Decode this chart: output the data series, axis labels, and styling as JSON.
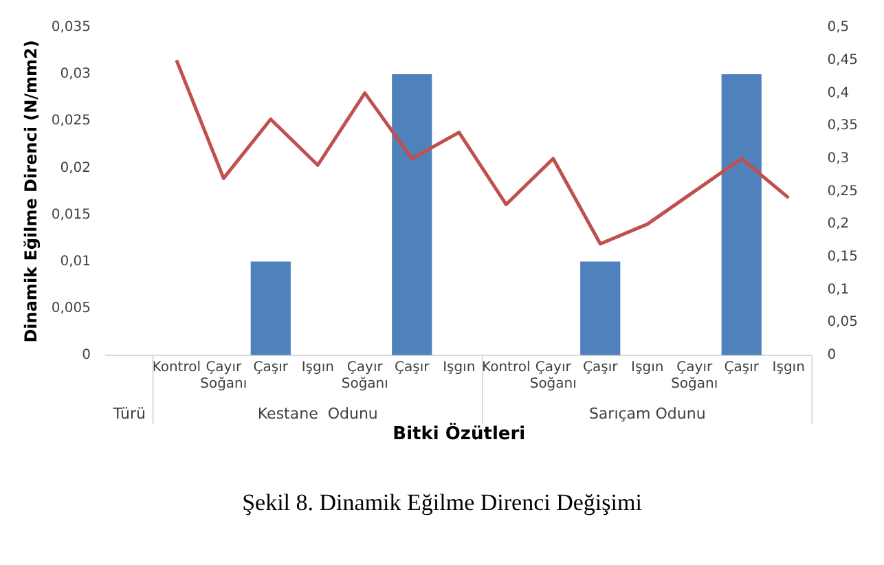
{
  "chart_data": {
    "type": "bar",
    "title": "Şekil 8. Dinamik Eğilme Direnci Değişimi",
    "xlabel": "Bitki Özütleri",
    "ylabel": "Dinamik Eğilme Direnci (N/mm2)",
    "categories": [
      null,
      "Kontrol",
      "Çayır Soğanı",
      "Çaşır",
      "Işgın",
      "Çayır Soğanı",
      "Çaşır",
      "Işgın",
      "Kontrol",
      "Çayır Soğanı",
      "Çaşır",
      "Işgın",
      "Çayır Soğanı",
      "Çaşır",
      "Işgın"
    ],
    "annotations": [
      "Türü",
      "Kestane  Odunu",
      "Sarıçam Odunu"
    ],
    "series": [
      {
        "color": "#4f81bd",
        "values": [
          null,
          null,
          null,
          0.01,
          null,
          null,
          0.03,
          null,
          null,
          null,
          0.01,
          null,
          null,
          0.03,
          null
        ]
      },
      {
        "type": "line",
        "axis": "y2",
        "color": "#c0504d",
        "values": [
          null,
          0.45,
          0.27,
          0.36,
          0.29,
          0.4,
          0.3,
          0.34,
          0.23,
          0.3,
          0.17,
          0.2,
          0.25,
          0.3,
          0.24
        ]
      }
    ],
    "ylim": [
      0,
      0.035
    ],
    "yticks": [
      0,
      {
        "value": 0.005,
        "label": "0,005"
      },
      {
        "value": 0.01,
        "label": "0,01"
      },
      {
        "value": 0.015,
        "label": "0,015"
      },
      {
        "value": 0.02,
        "label": "0,02"
      },
      {
        "value": 0.025,
        "label": "0,025"
      },
      {
        "value": 0.03,
        "label": "0,03"
      },
      {
        "value": 0.035,
        "label": "0,035"
      }
    ],
    "y2lim": [
      0,
      0.5
    ],
    "y2ticks": [
      0,
      {
        "value": 0.05,
        "label": "0,05"
      },
      {
        "value": 0.1,
        "label": "0,1"
      },
      {
        "value": 0.15,
        "label": "0,15"
      },
      {
        "value": 0.2,
        "label": "0,2"
      },
      {
        "value": 0.25,
        "label": "0,25"
      },
      {
        "value": 0.3,
        "label": "0,3"
      },
      {
        "value": 0.35,
        "label": "0,35"
      },
      {
        "value": 0.4,
        "label": "0,4"
      },
      {
        "value": 0.45,
        "label": "0,45"
      },
      {
        "value": 0.5,
        "label": "0,5"
      }
    ],
    "grid": false,
    "legend": false,
    "marker": "none"
  }
}
